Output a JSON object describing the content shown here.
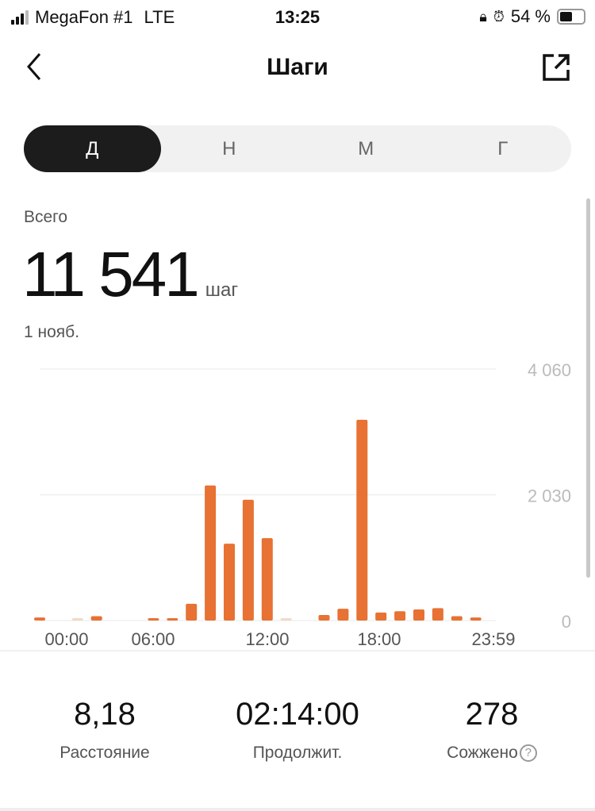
{
  "status_bar": {
    "carrier": "MegaFon #1",
    "network": "LTE",
    "time": "13:25",
    "battery": "54 %",
    "battery_level": 54,
    "icons": [
      "signal-icon",
      "orientation-lock-icon",
      "alarm-icon",
      "battery-icon"
    ]
  },
  "header": {
    "title": "Шаги",
    "back_icon": "chevron-left-icon",
    "share_icon": "share-external-icon"
  },
  "tabs": [
    {
      "label": "Д",
      "active": true
    },
    {
      "label": "Н"
    },
    {
      "label": "М"
    },
    {
      "label": "Г"
    }
  ],
  "summary": {
    "label": "Всего",
    "value": "11 541",
    "unit": "шаг",
    "date": "1 нояб."
  },
  "colors": {
    "bar": "#e77233",
    "bar_faint": "#f3d9c8",
    "tab_active": "#1c1c1c"
  },
  "chart_data": {
    "type": "bar",
    "x": [
      0,
      1,
      2,
      3,
      4,
      5,
      6,
      7,
      8,
      9,
      10,
      11,
      12,
      13,
      14,
      15,
      16,
      17,
      18,
      19,
      20,
      21,
      22,
      23
    ],
    "values": [
      50,
      0,
      10,
      70,
      0,
      0,
      20,
      30,
      270,
      2180,
      1240,
      1950,
      1330,
      10,
      0,
      90,
      190,
      3240,
      130,
      150,
      180,
      200,
      70,
      50
    ],
    "xtick_labels": [
      "00:00",
      "06:00",
      "12:00",
      "18:00",
      "23:59"
    ],
    "ytick_labels": [
      "4 060",
      "2 030",
      "0"
    ],
    "yticks": [
      4060,
      2030,
      0
    ],
    "ylim": [
      0,
      4060
    ],
    "grid": true
  },
  "stats": [
    {
      "value": "8,18",
      "label": "Расстояние"
    },
    {
      "value": "02:14:00",
      "label": "Продолжит."
    },
    {
      "value": "278",
      "label": "Сожжено",
      "help": "?"
    }
  ]
}
